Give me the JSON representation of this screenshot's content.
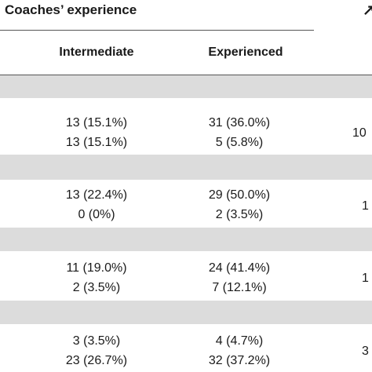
{
  "header": {
    "group_title": "Coaches’ experience",
    "cut_glyph": "↗"
  },
  "columns": [
    "Intermediate",
    "Experienced"
  ],
  "row_groups": [
    {
      "rows": [
        {
          "intermediate": "13 (15.1%)",
          "experienced": "31 (36.0%)"
        },
        {
          "intermediate": "13 (15.1%)",
          "experienced": "5 (5.8%)"
        }
      ],
      "right_value": "10"
    },
    {
      "rows": [
        {
          "intermediate": "13 (22.4%)",
          "experienced": "29 (50.0%)"
        },
        {
          "intermediate": "0 (0%)",
          "experienced": "2 (3.5%)"
        }
      ],
      "right_value": "1"
    },
    {
      "rows": [
        {
          "intermediate": "11 (19.0%)",
          "experienced": "24 (41.4%)"
        },
        {
          "intermediate": "2 (3.5%)",
          "experienced": "7 (12.1%)"
        }
      ],
      "right_value": "1"
    },
    {
      "rows": [
        {
          "intermediate": "3 (3.5%)",
          "experienced": "4 (4.7%)"
        },
        {
          "intermediate": "23 (26.7%)",
          "experienced": "32 (37.2%)"
        }
      ],
      "right_value": "3"
    }
  ]
}
